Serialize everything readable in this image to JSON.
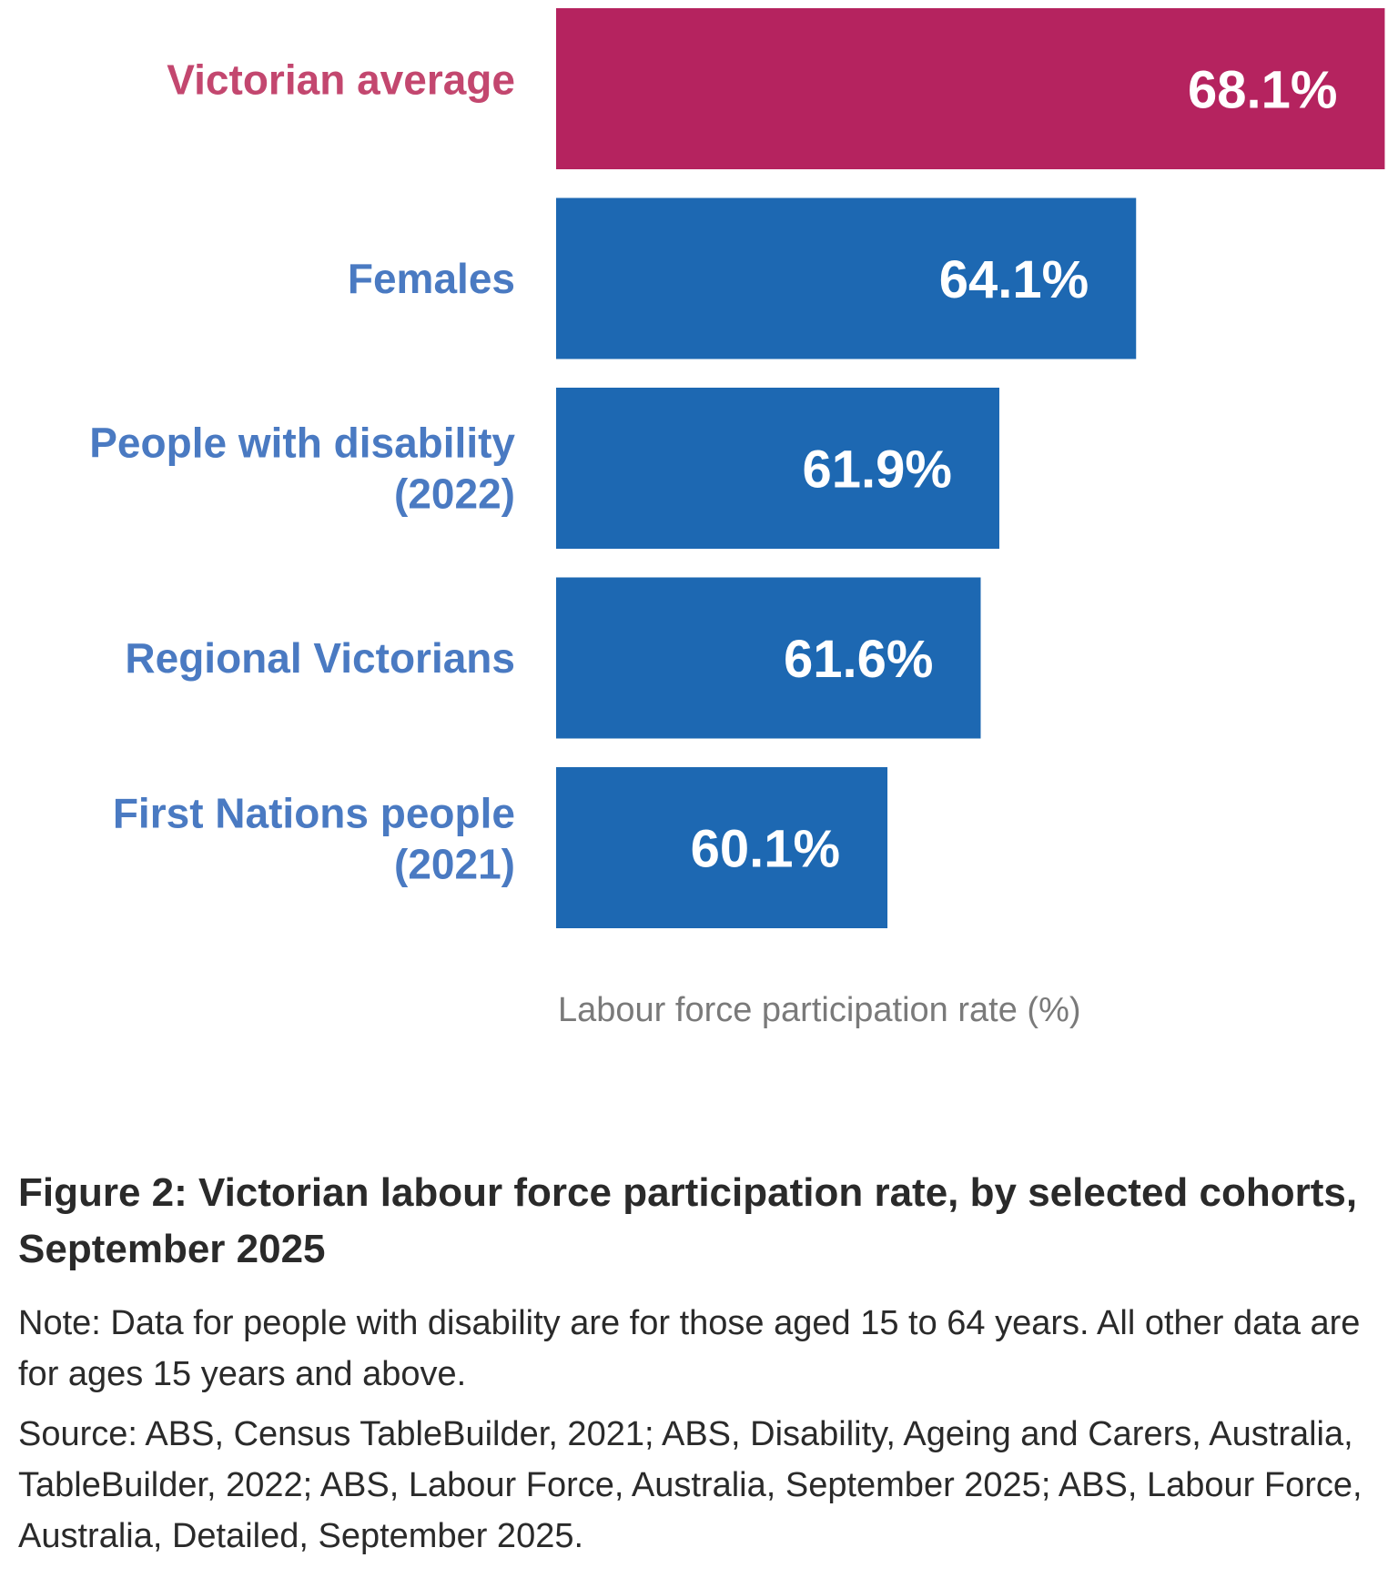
{
  "chart_data": {
    "type": "bar",
    "orientation": "horizontal",
    "categories": [
      "Victorian average",
      "Females",
      "People with disability (2022)",
      "Regional Victorians",
      "First Nations people (2021)"
    ],
    "category_lines": [
      [
        "Victorian average"
      ],
      [
        "Females"
      ],
      [
        "People with disability",
        "(2022)"
      ],
      [
        "Regional Victorians"
      ],
      [
        "First Nations people",
        "(2021)"
      ]
    ],
    "values": [
      68.1,
      64.1,
      61.9,
      61.6,
      60.1
    ],
    "data_labels": [
      "68.1%",
      "64.1%",
      "61.9%",
      "61.6%",
      "60.1%"
    ],
    "xlabel": "Labour force participation rate (%)",
    "ylabel": "",
    "grid": false,
    "colors": [
      "#B5235F",
      "#1D68B2",
      "#1D68B2",
      "#1D68B2",
      "#1D68B2"
    ],
    "label_colors": [
      "#C3476F",
      "#4A7AC2",
      "#4A7AC2",
      "#4A7AC2",
      "#4A7AC2"
    ]
  },
  "caption": {
    "title": "Figure 2: Victorian labour force participation rate, by selected cohorts, September 2025",
    "note": "Note: Data for people with disability are for those aged 15 to 64 years. All other data are for ages 15 years and above.",
    "source": "Source: ABS, Census TableBuilder, 2021; ABS, Disability, Ageing and Carers, Australia, TableBuilder, 2022; ABS, Labour Force, Australia, September 2025; ABS, Labour Force, Australia, Detailed, September 2025."
  }
}
